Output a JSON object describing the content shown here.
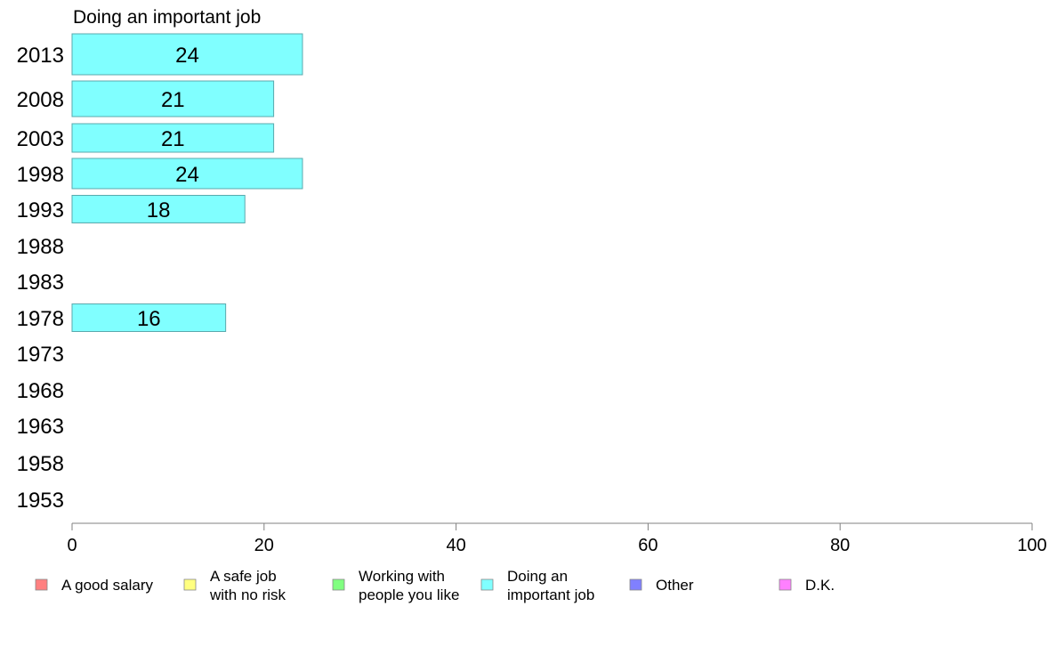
{
  "chart_data": {
    "type": "bar",
    "orientation": "horizontal",
    "title": "Doing an important job",
    "categories": [
      "2013",
      "2008",
      "2003",
      "1998",
      "1993",
      "1988",
      "1983",
      "1978",
      "1973",
      "1968",
      "1963",
      "1958",
      "1953"
    ],
    "series": [
      {
        "name": "Doing an important job",
        "color": "#80FFFF",
        "values": [
          24,
          21,
          21,
          24,
          18,
          null,
          null,
          16,
          null,
          null,
          null,
          null,
          null
        ]
      }
    ],
    "xlim": [
      0,
      100
    ],
    "xticks": [
      "0",
      "20",
      "40",
      "60",
      "80",
      "100"
    ],
    "grid": false,
    "legend_position": "bottom"
  },
  "legend": {
    "items": [
      {
        "lines": [
          "A good salary"
        ],
        "color": "#FF8080"
      },
      {
        "lines": [
          "A safe job",
          "with no risk"
        ],
        "color": "#FFFF80"
      },
      {
        "lines": [
          "Working with",
          "people you like"
        ],
        "color": "#80FF80"
      },
      {
        "lines": [
          "Doing an",
          "important job"
        ],
        "color": "#80FFFF"
      },
      {
        "lines": [
          "Other"
        ],
        "color": "#8080FF"
      },
      {
        "lines": [
          "D.K."
        ],
        "color": "#FF80FF"
      }
    ]
  }
}
